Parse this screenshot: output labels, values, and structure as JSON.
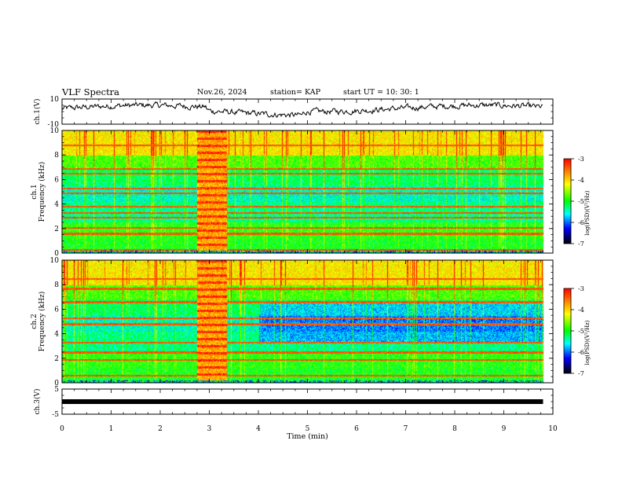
{
  "header": {
    "title": "VLF Spectra",
    "date": "Nov.26, 2024",
    "station": "station= KAP",
    "start_ut": "start  UT =   10: 30: 1"
  },
  "panels": {
    "ch1_wave": {
      "ylabel": "ch.1(V)",
      "ticks": [
        "10",
        "-10"
      ]
    },
    "ch1_spec": {
      "ylabel": "ch.1\nFrequency (kHz)",
      "ticks": [
        "10",
        "8",
        "6",
        "4",
        "2",
        "0"
      ]
    },
    "ch2_spec": {
      "ylabel": "ch.2\nFrequency (kHz)",
      "ticks": [
        "10",
        "8",
        "6",
        "4",
        "2",
        "0"
      ]
    },
    "ch3_wave": {
      "ylabel": "ch.3(V)",
      "ticks": [
        "5",
        "-5"
      ]
    }
  },
  "colorbar": {
    "label": "log(PSD)(V²/Hz)",
    "ticks": [
      "-3",
      "-4",
      "-5",
      "-6",
      "-7"
    ]
  },
  "colors": {
    "scale": [
      "#ff0000",
      "#ffff00",
      "#00ff00",
      "#00ffff",
      "#0000ff",
      "#000000"
    ]
  },
  "chart_data": {
    "type": "heatmap",
    "xlabel": "Time (min)",
    "x_ticks": [
      "0",
      "1",
      "2",
      "3",
      "4",
      "5",
      "6",
      "7",
      "8",
      "9",
      "10"
    ],
    "xlim": [
      0,
      10
    ],
    "data_end_min": 9.8,
    "ch1_voltage_ylim": [
      -10,
      10
    ],
    "frequency_ylim_khz": [
      0,
      10
    ],
    "ch3_voltage_ylim": [
      -5,
      5
    ],
    "log_psd_range": [
      -7,
      -3
    ],
    "ch3_level_v": 0,
    "transmitter_burst_min": [
      2.75,
      3.35
    ],
    "ch1_persistent_lines_khz": [
      0.3,
      1.6,
      2.1,
      2.9,
      3.3,
      3.8,
      4.9,
      5.3,
      6.5,
      6.9,
      8.8
    ],
    "ch2_persistent_lines_khz": [
      0.6,
      1.9,
      2.5,
      3.3,
      4.8,
      5.3,
      6.6,
      7.7,
      8.5
    ]
  }
}
